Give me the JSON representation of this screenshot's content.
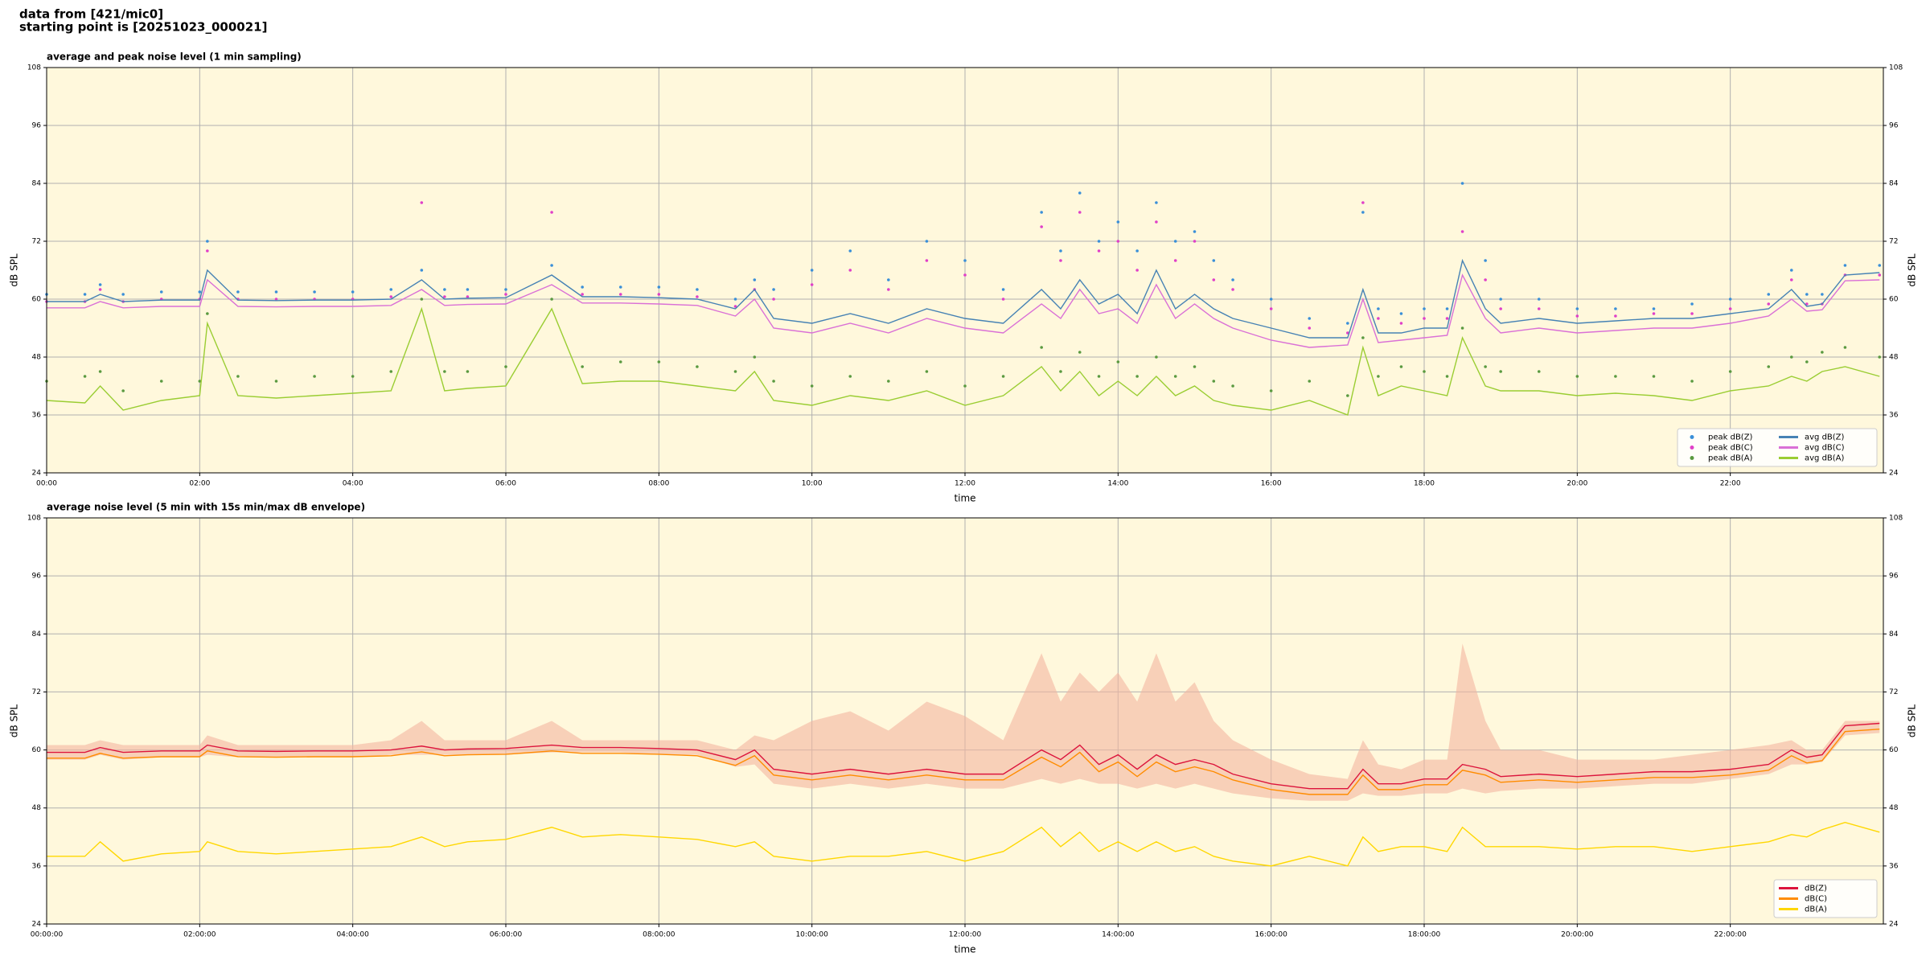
{
  "header": {
    "line1": "data from [421/mic0]",
    "line2": "starting point is [20251023_000021]"
  },
  "chart_data": [
    {
      "type": "line",
      "title": "average and peak noise level (1 min sampling)",
      "xlabel": "time",
      "ylabel": "dB SPL",
      "x": [
        0,
        0.5,
        0.7,
        1,
        1.5,
        2,
        2.1,
        2.5,
        3,
        3.5,
        4,
        4.5,
        4.9,
        5.2,
        5.5,
        6,
        6.6,
        7,
        7.5,
        8,
        8.5,
        9,
        9.25,
        9.5,
        10,
        10.5,
        11,
        11.5,
        12,
        12.5,
        13,
        13.25,
        13.5,
        13.75,
        14,
        14.25,
        14.5,
        14.75,
        15,
        15.25,
        15.5,
        16,
        16.5,
        17,
        17.2,
        17.4,
        17.7,
        18,
        18.3,
        18.5,
        18.8,
        19,
        19.5,
        20,
        20.5,
        21,
        21.5,
        22,
        22.5,
        22.8,
        23,
        23.2,
        23.5,
        23.95
      ],
      "xlim": [
        0,
        24
      ],
      "xticks": [
        {
          "value": 0,
          "label": "00:00"
        },
        {
          "value": 2,
          "label": "02:00"
        },
        {
          "value": 4,
          "label": "04:00"
        },
        {
          "value": 6,
          "label": "06:00"
        },
        {
          "value": 8,
          "label": "08:00"
        },
        {
          "value": 10,
          "label": "10:00"
        },
        {
          "value": 12,
          "label": "12:00"
        },
        {
          "value": 14,
          "label": "14:00"
        },
        {
          "value": 16,
          "label": "16:00"
        },
        {
          "value": 18,
          "label": "18:00"
        },
        {
          "value": 20,
          "label": "20:00"
        },
        {
          "value": 22,
          "label": "22:00"
        }
      ],
      "ylim": [
        24,
        108
      ],
      "yticks": [
        24,
        36,
        48,
        60,
        72,
        84,
        96,
        108
      ],
      "grid": true,
      "legend": "lower right",
      "legend_columns": 2,
      "series": [
        {
          "name": "peak dB(Z)",
          "kind": "scatter",
          "color": "#3a8fd8",
          "values": [
            61,
            61,
            63,
            61,
            61.5,
            61.5,
            72,
            61.5,
            61.5,
            61.5,
            61.5,
            62,
            66,
            62,
            62,
            62,
            67,
            62.5,
            62.5,
            62.5,
            62,
            60,
            64,
            62,
            66,
            70,
            64,
            72,
            68,
            62,
            78,
            70,
            82,
            72,
            76,
            70,
            80,
            72,
            74,
            68,
            64,
            60,
            56,
            55,
            78,
            58,
            57,
            58,
            58,
            84,
            68,
            60,
            60,
            58,
            58,
            58,
            59,
            60,
            61,
            66,
            61,
            61,
            67,
            67
          ]
        },
        {
          "name": "peak dB(C)",
          "kind": "scatter",
          "color": "#e040c8",
          "values": [
            59.5,
            59.5,
            62,
            59.5,
            60,
            60,
            70,
            60,
            60,
            60,
            60,
            60.5,
            80,
            60.5,
            60.5,
            61,
            78,
            61,
            61,
            61,
            60.5,
            58.5,
            62,
            60,
            63,
            66,
            62,
            68,
            65,
            60,
            75,
            68,
            78,
            70,
            72,
            66,
            76,
            68,
            72,
            64,
            62,
            58,
            54,
            53,
            80,
            56,
            55,
            56,
            56,
            74,
            64,
            58,
            58,
            56.5,
            56.5,
            57,
            57,
            58,
            59,
            64,
            59,
            59,
            65,
            65
          ]
        },
        {
          "name": "peak dB(A)",
          "kind": "scatter",
          "color": "#5a9a40",
          "values": [
            43,
            44,
            45,
            41,
            43,
            43,
            57,
            44,
            43,
            44,
            44,
            45,
            60,
            45,
            45,
            46,
            60,
            46,
            47,
            47,
            46,
            45,
            48,
            43,
            42,
            44,
            43,
            45,
            42,
            44,
            50,
            45,
            49,
            44,
            47,
            44,
            48,
            44,
            46,
            43,
            42,
            41,
            43,
            40,
            52,
            44,
            46,
            45,
            44,
            54,
            46,
            45,
            45,
            44,
            44,
            44,
            43,
            45,
            46,
            48,
            47,
            49,
            50,
            48
          ]
        },
        {
          "name": "avg dB(Z)",
          "kind": "line",
          "color": "#4682b4",
          "values": [
            59.5,
            59.5,
            61,
            59.5,
            59.8,
            59.8,
            66,
            59.8,
            59.7,
            59.8,
            59.8,
            60,
            64,
            60,
            60.2,
            60.3,
            65,
            60.5,
            60.5,
            60.3,
            60,
            58,
            62,
            56,
            55,
            57,
            55,
            58,
            56,
            55,
            62,
            58,
            64,
            59,
            61,
            57,
            66,
            58,
            61,
            58,
            56,
            54,
            52,
            52,
            62,
            53,
            53,
            54,
            54,
            68,
            58,
            55,
            56,
            55,
            55.5,
            56,
            56,
            57,
            58,
            62,
            58.5,
            59,
            65,
            65.5
          ]
        },
        {
          "name": "avg dB(C)",
          "kind": "line",
          "color": "#da70d6",
          "values": [
            58.2,
            58.2,
            59.5,
            58.2,
            58.5,
            58.5,
            64,
            58.5,
            58.4,
            58.5,
            58.5,
            58.7,
            62,
            58.7,
            58.9,
            59,
            63,
            59.2,
            59.2,
            59,
            58.7,
            56.5,
            60,
            54,
            53,
            55,
            53,
            56,
            54,
            53,
            59,
            56,
            62,
            57,
            58,
            55,
            63,
            56,
            59,
            56,
            54,
            51.5,
            50,
            50.5,
            60,
            51,
            51.5,
            52,
            52.5,
            65,
            56,
            53,
            54,
            53,
            53.5,
            54,
            54,
            55,
            56.5,
            60,
            57.5,
            57.8,
            63.8,
            64
          ]
        },
        {
          "name": "avg dB(A)",
          "kind": "line",
          "color": "#9acd32",
          "values": [
            39,
            38.5,
            42,
            37,
            39,
            40,
            55,
            40,
            39.5,
            40,
            40.5,
            41,
            58,
            41,
            41.5,
            42,
            58,
            42.5,
            43,
            43,
            42,
            41,
            45,
            39,
            38,
            40,
            39,
            41,
            38,
            40,
            46,
            41,
            45,
            40,
            43,
            40,
            44,
            40,
            42,
            39,
            38,
            37,
            39,
            36,
            50,
            40,
            42,
            41,
            40,
            52,
            42,
            41,
            41,
            40,
            40.5,
            40,
            39,
            41,
            42,
            44,
            43,
            45,
            46,
            44
          ]
        }
      ]
    },
    {
      "type": "line",
      "title": "average noise level (5 min with 15s min/max dB envelope)",
      "xlabel": "time",
      "ylabel": "dB SPL",
      "x": [
        0,
        0.5,
        0.7,
        1,
        1.5,
        2,
        2.1,
        2.5,
        3,
        3.5,
        4,
        4.5,
        4.9,
        5.2,
        5.5,
        6,
        6.6,
        7,
        7.5,
        8,
        8.5,
        9,
        9.25,
        9.5,
        10,
        10.5,
        11,
        11.5,
        12,
        12.5,
        13,
        13.25,
        13.5,
        13.75,
        14,
        14.25,
        14.5,
        14.75,
        15,
        15.25,
        15.5,
        16,
        16.5,
        17,
        17.2,
        17.4,
        17.7,
        18,
        18.3,
        18.5,
        18.8,
        19,
        19.5,
        20,
        20.5,
        21,
        21.5,
        22,
        22.5,
        22.8,
        23,
        23.2,
        23.5,
        23.95
      ],
      "xlim": [
        0,
        24
      ],
      "xticks": [
        {
          "value": 0,
          "label": "00:00:00"
        },
        {
          "value": 2,
          "label": "02:00:00"
        },
        {
          "value": 4,
          "label": "04:00:00"
        },
        {
          "value": 6,
          "label": "06:00:00"
        },
        {
          "value": 8,
          "label": "08:00:00"
        },
        {
          "value": 10,
          "label": "10:00:00"
        },
        {
          "value": 12,
          "label": "12:00:00"
        },
        {
          "value": 14,
          "label": "14:00:00"
        },
        {
          "value": 16,
          "label": "16:00:00"
        },
        {
          "value": 18,
          "label": "18:00:00"
        },
        {
          "value": 20,
          "label": "20:00:00"
        },
        {
          "value": 22,
          "label": "22:00:00"
        }
      ],
      "ylim": [
        24,
        108
      ],
      "yticks": [
        24,
        36,
        48,
        60,
        72,
        84,
        96,
        108
      ],
      "grid": true,
      "legend": "lower right",
      "legend_columns": 1,
      "envelope": {
        "color": "#f4b6a0",
        "upper": [
          61,
          61,
          62,
          61,
          61,
          61,
          63,
          61,
          61,
          61,
          61,
          62,
          66,
          62,
          62,
          62,
          66,
          62,
          62,
          62,
          62,
          60,
          63,
          62,
          66,
          68,
          64,
          70,
          67,
          62,
          80,
          70,
          76,
          72,
          76,
          70,
          80,
          70,
          74,
          66,
          62,
          58,
          55,
          54,
          62,
          57,
          56,
          58,
          58,
          82,
          66,
          60,
          60,
          58,
          58,
          58,
          59,
          60,
          61,
          62,
          60,
          60,
          66,
          66
        ],
        "lower": [
          58,
          58,
          59,
          58,
          58.5,
          58.5,
          59,
          58.5,
          58.5,
          58.5,
          58.5,
          59,
          59,
          59,
          59,
          59,
          59.5,
          59.5,
          59.5,
          59,
          59,
          56.5,
          57,
          53,
          52,
          53,
          52,
          53,
          52,
          52,
          54,
          53,
          54,
          53,
          53,
          52,
          53,
          52,
          53,
          52,
          51,
          50,
          49.5,
          49.5,
          51,
          50.5,
          50.5,
          51,
          51,
          52,
          51,
          51.5,
          52,
          52,
          52.5,
          53,
          53,
          54,
          55,
          57,
          57,
          57.5,
          63,
          63.5
        ]
      },
      "series": [
        {
          "name": "dB(Z)",
          "kind": "line",
          "color": "#dc143c",
          "values": [
            59.5,
            59.5,
            60.5,
            59.5,
            59.8,
            59.8,
            61,
            59.8,
            59.7,
            59.8,
            59.8,
            60,
            60.8,
            60,
            60.2,
            60.3,
            61,
            60.5,
            60.5,
            60.3,
            60,
            58,
            60,
            56,
            55,
            56,
            55,
            56,
            55,
            55,
            60,
            58,
            61,
            57,
            59,
            56,
            59,
            57,
            58,
            57,
            55,
            53,
            52,
            52,
            56,
            53,
            53,
            54,
            54,
            57,
            56,
            54.5,
            55,
            54.5,
            55,
            55.5,
            55.5,
            56,
            57,
            60,
            58.5,
            59,
            65,
            65.5
          ]
        },
        {
          "name": "dB(C)",
          "kind": "line",
          "color": "#ff8c00",
          "values": [
            58.3,
            58.3,
            59.3,
            58.3,
            58.6,
            58.6,
            59.8,
            58.6,
            58.5,
            58.6,
            58.6,
            58.8,
            59.6,
            58.8,
            59,
            59.1,
            59.8,
            59.3,
            59.3,
            59.1,
            58.8,
            56.8,
            58.8,
            54.8,
            53.8,
            54.8,
            53.8,
            54.8,
            53.8,
            53.8,
            58.5,
            56.5,
            59.5,
            55.5,
            57.5,
            54.5,
            57.5,
            55.5,
            56.5,
            55.5,
            53.8,
            51.8,
            50.8,
            50.8,
            54.8,
            51.8,
            51.8,
            52.8,
            52.8,
            55.8,
            54.8,
            53.3,
            53.8,
            53.3,
            53.8,
            54.3,
            54.3,
            54.8,
            55.8,
            58.8,
            57.3,
            57.8,
            63.8,
            64.3
          ]
        },
        {
          "name": "dB(A)",
          "kind": "line",
          "color": "#ffd700",
          "values": [
            38,
            38,
            41,
            37,
            38.5,
            39,
            41,
            39,
            38.5,
            39,
            39.5,
            40,
            42,
            40,
            41,
            41.5,
            44,
            42,
            42.5,
            42,
            41.5,
            40,
            41,
            38,
            37,
            38,
            38,
            39,
            37,
            39,
            44,
            40,
            43,
            39,
            41,
            39,
            41,
            39,
            40,
            38,
            37,
            36,
            38,
            36,
            42,
            39,
            40,
            40,
            39,
            44,
            40,
            40,
            40,
            39.5,
            40,
            40,
            39,
            40,
            41,
            42.5,
            42,
            43.5,
            45,
            43
          ]
        }
      ]
    }
  ]
}
